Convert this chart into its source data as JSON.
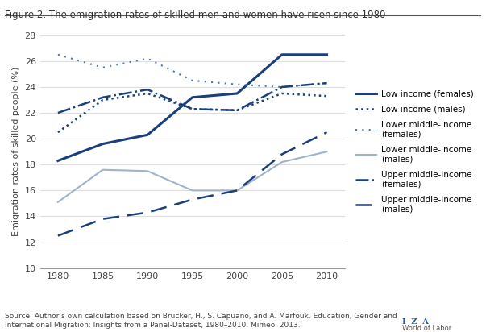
{
  "title": "Figure 2. The emigration rates of skilled men and women have risen since 1980",
  "ylabel": "Emigration rates of skilled people (%)",
  "xlabel": "",
  "years": [
    1980,
    1985,
    1990,
    1995,
    2000,
    2005,
    2010
  ],
  "series": {
    "low_income_females": {
      "values": [
        18.3,
        19.6,
        20.3,
        23.2,
        23.5,
        26.5,
        26.5
      ],
      "color": "#1a4f8a",
      "linestyle": "solid",
      "linewidth": 2.0,
      "label": "Low income (females)"
    },
    "low_income_males": {
      "values": [
        20.5,
        23.0,
        23.5,
        22.3,
        22.2,
        23.5,
        23.3
      ],
      "color": "#1a4f8a",
      "linestyle": "dotted",
      "linewidth": 1.8,
      "label": "Low income (males)"
    },
    "lower_middle_income_females": {
      "values": [
        26.5,
        25.5,
        26.2,
        24.5,
        24.2,
        24.0,
        24.3
      ],
      "color": "#1a4f8a",
      "linestyle": "dotted",
      "linewidth": 1.2,
      "label": "Lower middle-income\n(females)"
    },
    "lower_middle_income_males": {
      "values": [
        15.1,
        17.6,
        17.5,
        16.0,
        16.0,
        18.2,
        19.0
      ],
      "color": "#8fa8cc",
      "linestyle": "solid",
      "linewidth": 1.5,
      "label": "Lower middle-income\n(males)"
    },
    "upper_middle_income_females": {
      "values": [
        22.0,
        23.2,
        23.8,
        22.3,
        22.2,
        24.0,
        24.3
      ],
      "color": "#1a4f8a",
      "linestyle": "dashdot",
      "linewidth": 1.8,
      "label": "Upper middle-income\n(females)"
    },
    "upper_middle_income_males": {
      "values": [
        12.5,
        13.8,
        14.3,
        15.3,
        16.0,
        18.8,
        20.5
      ],
      "color": "#1a4f8a",
      "linestyle": "dashed",
      "linewidth": 1.5,
      "label": "Upper middle-income\n(males)"
    }
  },
  "ylim": [
    10,
    28
  ],
  "yticks": [
    10,
    12,
    14,
    16,
    18,
    20,
    22,
    24,
    26,
    28
  ],
  "xticks": [
    1980,
    1985,
    1990,
    1995,
    2000,
    2005,
    2010
  ],
  "source_text": "Source: Author’s own calculation based on Brücker, H., S. Capuano, and A. Marfouk. Education, Gender and\nInternational Migration: Insights from a Panel-Dataset, 1980–2010. Mimeo, 2013.",
  "background_color": "#ffffff",
  "fig_border_color": "#cccccc"
}
